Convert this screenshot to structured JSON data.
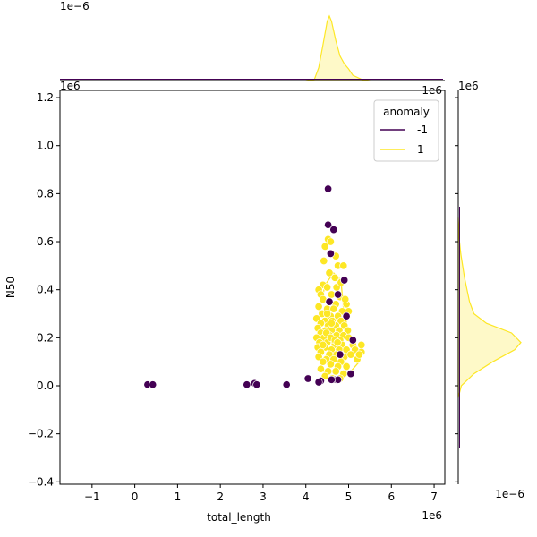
{
  "chart_data": {
    "type": "scatter",
    "title": "",
    "xlabel": "total_length",
    "ylabel": "N50",
    "x_offset_label": "1e6",
    "y_offset_label": "1e6",
    "top_marginal_offset_label": "1e−6",
    "top_marginal_right_offset_label": "1e6",
    "right_marginal_offset_label": "1e−6",
    "right_marginal_top_offset_label": "1e6",
    "xlim": [
      -1.75,
      7.25
    ],
    "ylim": [
      -0.41,
      1.23
    ],
    "x_ticks": [
      -1,
      0,
      1,
      2,
      3,
      4,
      5,
      6,
      7
    ],
    "y_ticks": [
      -0.4,
      -0.2,
      0.0,
      0.2,
      0.4,
      0.6,
      0.8,
      1.0,
      1.2
    ],
    "x_tick_labels": [
      "−1",
      "0",
      "1",
      "2",
      "3",
      "4",
      "5",
      "6",
      "7"
    ],
    "y_tick_labels": [
      "−0.4",
      "−0.2",
      "0.0",
      "0.2",
      "0.4",
      "0.6",
      "0.8",
      "1.0",
      "1.2"
    ],
    "legend": {
      "title": "anomaly",
      "placement": "top-right",
      "entries": [
        {
          "label": "-1",
          "color": "#440154"
        },
        {
          "label": "1",
          "color": "#fde725"
        }
      ]
    },
    "series": [
      {
        "name": "1",
        "color": "#fde725",
        "points": [
          [
            4.52,
            0.61
          ],
          [
            4.45,
            0.58
          ],
          [
            4.6,
            0.55
          ],
          [
            4.75,
            0.5
          ],
          [
            4.88,
            0.5
          ],
          [
            4.55,
            0.47
          ],
          [
            4.68,
            0.45
          ],
          [
            4.9,
            0.44
          ],
          [
            4.4,
            0.42
          ],
          [
            4.3,
            0.4
          ],
          [
            4.5,
            0.41
          ],
          [
            4.72,
            0.41
          ],
          [
            4.35,
            0.38
          ],
          [
            4.6,
            0.38
          ],
          [
            4.8,
            0.37
          ],
          [
            4.4,
            0.36
          ],
          [
            4.55,
            0.35
          ],
          [
            4.7,
            0.34
          ],
          [
            4.95,
            0.34
          ],
          [
            4.3,
            0.33
          ],
          [
            4.5,
            0.32
          ],
          [
            4.65,
            0.32
          ],
          [
            4.85,
            0.31
          ],
          [
            5.0,
            0.31
          ],
          [
            4.38,
            0.3
          ],
          [
            4.58,
            0.29
          ],
          [
            4.75,
            0.29
          ],
          [
            4.25,
            0.28
          ],
          [
            4.45,
            0.27
          ],
          [
            4.62,
            0.27
          ],
          [
            4.82,
            0.27
          ],
          [
            4.35,
            0.26
          ],
          [
            4.52,
            0.25
          ],
          [
            4.7,
            0.25
          ],
          [
            4.9,
            0.25
          ],
          [
            4.28,
            0.24
          ],
          [
            4.46,
            0.23
          ],
          [
            4.6,
            0.23
          ],
          [
            4.78,
            0.23
          ],
          [
            4.98,
            0.23
          ],
          [
            4.35,
            0.22
          ],
          [
            4.55,
            0.21
          ],
          [
            4.72,
            0.21
          ],
          [
            4.88,
            0.21
          ],
          [
            4.25,
            0.2
          ],
          [
            4.42,
            0.2
          ],
          [
            4.62,
            0.19
          ],
          [
            4.8,
            0.19
          ],
          [
            5.0,
            0.2
          ],
          [
            4.32,
            0.18
          ],
          [
            4.5,
            0.18
          ],
          [
            4.68,
            0.17
          ],
          [
            4.85,
            0.17
          ],
          [
            5.1,
            0.17
          ],
          [
            4.28,
            0.16
          ],
          [
            4.45,
            0.16
          ],
          [
            4.6,
            0.15
          ],
          [
            4.78,
            0.15
          ],
          [
            4.95,
            0.15
          ],
          [
            5.15,
            0.15
          ],
          [
            4.35,
            0.14
          ],
          [
            4.55,
            0.13
          ],
          [
            4.72,
            0.13
          ],
          [
            4.9,
            0.12
          ],
          [
            5.05,
            0.13
          ],
          [
            4.3,
            0.12
          ],
          [
            4.48,
            0.11
          ],
          [
            4.65,
            0.11
          ],
          [
            4.82,
            0.1
          ],
          [
            5.2,
            0.11
          ],
          [
            4.4,
            0.1
          ],
          [
            4.58,
            0.09
          ],
          [
            4.75,
            0.08
          ],
          [
            4.95,
            0.08
          ],
          [
            4.35,
            0.07
          ],
          [
            4.52,
            0.06
          ],
          [
            4.7,
            0.06
          ],
          [
            4.88,
            0.05
          ],
          [
            4.45,
            0.04
          ],
          [
            4.62,
            0.03
          ],
          [
            4.8,
            0.03
          ],
          [
            5.3,
            0.17
          ],
          [
            5.3,
            0.14
          ],
          [
            5.25,
            0.13
          ],
          [
            4.7,
            0.54
          ],
          [
            4.58,
            0.6
          ],
          [
            4.42,
            0.52
          ],
          [
            4.82,
            0.43
          ],
          [
            4.92,
            0.36
          ],
          [
            4.5,
            0.3
          ],
          [
            4.6,
            0.26
          ],
          [
            4.48,
            0.22
          ],
          [
            4.58,
            0.2
          ],
          [
            4.68,
            0.19
          ],
          [
            4.74,
            0.18
          ],
          [
            4.4,
            0.17
          ]
        ]
      },
      {
        "name": "-1",
        "color": "#440154",
        "points": [
          [
            4.52,
            0.82
          ],
          [
            4.52,
            0.67
          ],
          [
            4.65,
            0.65
          ],
          [
            4.58,
            0.55
          ],
          [
            4.9,
            0.44
          ],
          [
            4.75,
            0.38
          ],
          [
            4.55,
            0.35
          ],
          [
            4.95,
            0.29
          ],
          [
            5.1,
            0.19
          ],
          [
            4.8,
            0.13
          ],
          [
            5.05,
            0.05
          ],
          [
            4.7,
            0.025
          ],
          [
            4.75,
            0.025
          ],
          [
            4.35,
            0.02
          ],
          [
            4.6,
            0.025
          ],
          [
            0.3,
            0.005
          ],
          [
            0.42,
            0.005
          ],
          [
            2.62,
            0.005
          ],
          [
            2.8,
            0.01
          ],
          [
            2.85,
            0.005
          ],
          [
            3.55,
            0.005
          ],
          [
            4.05,
            0.03
          ],
          [
            4.3,
            0.015
          ]
        ]
      }
    ],
    "top_marginal": {
      "description": "KDE of total_length",
      "x": [
        4.0,
        4.2,
        4.3,
        4.4,
        4.5,
        4.55,
        4.6,
        4.7,
        4.8,
        4.9,
        5.0,
        5.1,
        5.3,
        5.5
      ],
      "density": [
        0.0,
        0.02,
        0.2,
        0.55,
        0.92,
        1.0,
        0.92,
        0.62,
        0.38,
        0.26,
        0.18,
        0.08,
        0.02,
        0.0
      ]
    },
    "right_marginal": {
      "description": "KDE of N50",
      "y": [
        -0.05,
        0.0,
        0.05,
        0.1,
        0.15,
        0.18,
        0.22,
        0.26,
        0.3,
        0.35,
        0.4,
        0.45,
        0.5,
        0.55,
        0.6,
        0.7
      ],
      "density": [
        0.0,
        0.05,
        0.25,
        0.55,
        0.9,
        1.0,
        0.85,
        0.45,
        0.25,
        0.18,
        0.14,
        0.1,
        0.07,
        0.04,
        0.02,
        0.0
      ]
    }
  }
}
